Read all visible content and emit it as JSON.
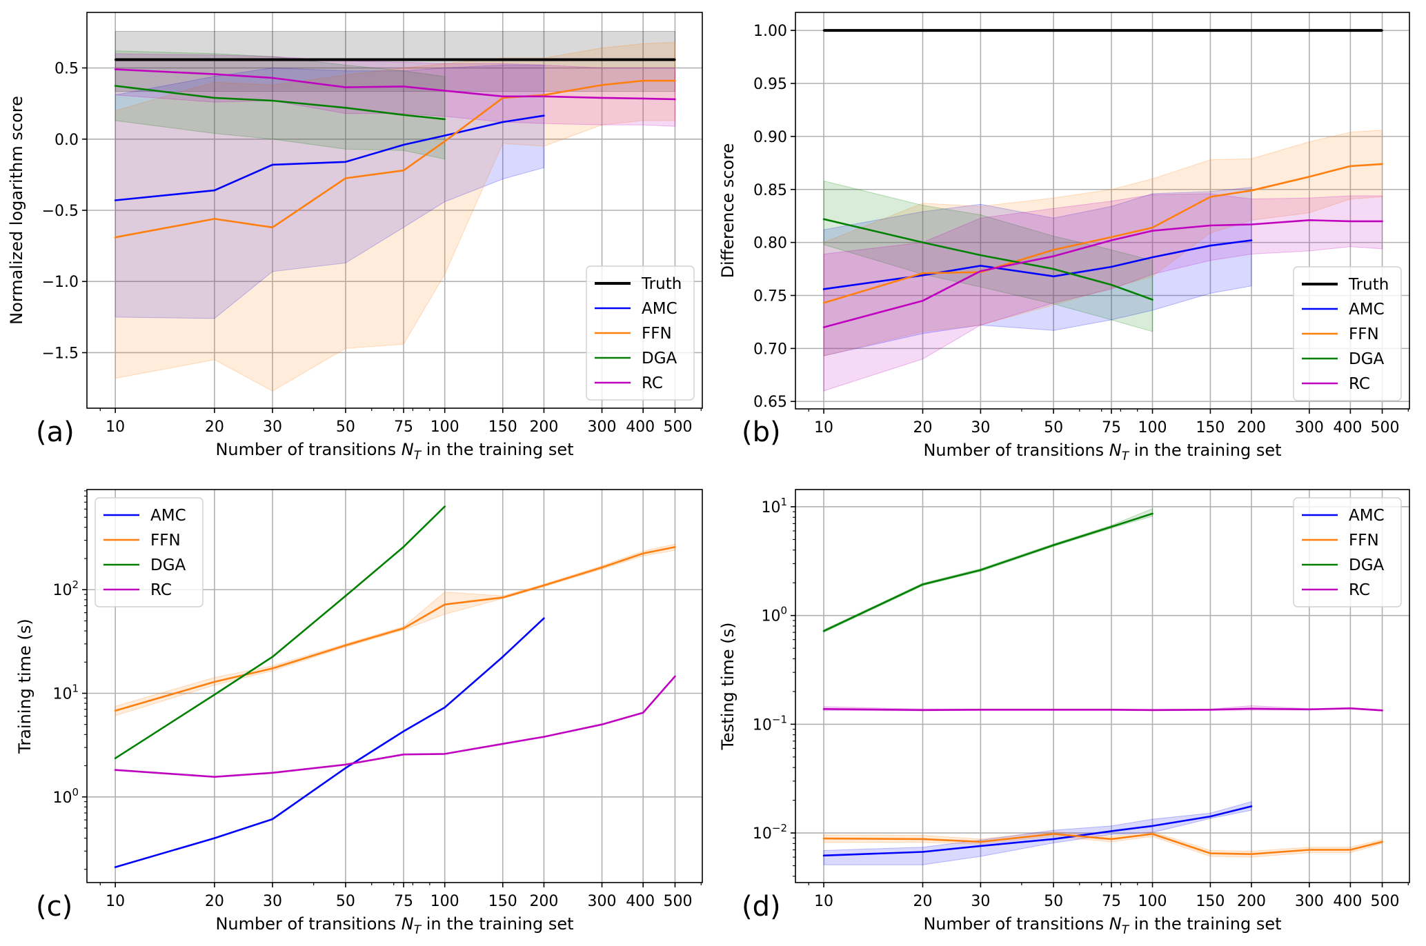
{
  "figure": {
    "x_ticks": [
      10,
      20,
      30,
      50,
      75,
      100,
      150,
      200,
      300,
      400,
      500
    ],
    "x_tick_labels": [
      "10",
      "20",
      "30",
      "50",
      "75",
      "100",
      "150",
      "200",
      "300",
      "400",
      "500"
    ],
    "xlabel_prefix": "Number of transitions ",
    "xlabel_symbol": "N",
    "xlabel_subscript": "T",
    "xlabel_suffix": " in the training set"
  },
  "colors": {
    "Truth": "#000000",
    "AMC": "#0000ff",
    "FFN": "#ff7f0e",
    "DGA": "#008000",
    "RC": "#bf00bf"
  },
  "chart_data": [
    {
      "id": "a",
      "panel_label": "(a)",
      "type": "line",
      "xscale": "log",
      "yscale": "linear",
      "xlim": [
        8.2,
        605
      ],
      "ylim": [
        -1.89,
        0.89
      ],
      "y_ticks": [
        -1.5,
        -1.0,
        -0.5,
        0.0,
        0.5
      ],
      "y_tick_labels": [
        "−1.5",
        "−1.0",
        "−0.5",
        "0.0",
        "0.5"
      ],
      "ylabel": "Normalized logarithm score",
      "grid": true,
      "legend_position": "lower-right",
      "legend": [
        "Truth",
        "AMC",
        "FFN",
        "DGA",
        "RC"
      ],
      "series": [
        {
          "name": "Truth",
          "x": [
            10,
            500
          ],
          "y": [
            0.558,
            0.558
          ],
          "lower": [
            0.335,
            0.335
          ],
          "upper": [
            0.757,
            0.757
          ]
        },
        {
          "name": "AMC",
          "x": [
            10,
            20,
            30,
            50,
            75,
            100,
            150,
            200
          ],
          "y": [
            -0.43,
            -0.36,
            -0.18,
            -0.16,
            -0.04,
            0.025,
            0.12,
            0.165
          ],
          "lower": [
            -1.25,
            -1.26,
            -0.93,
            -0.87,
            -0.62,
            -0.44,
            -0.28,
            -0.2
          ],
          "upper": [
            0.31,
            0.44,
            0.5,
            0.48,
            0.48,
            0.5,
            0.52,
            0.52
          ]
        },
        {
          "name": "FFN",
          "x": [
            10,
            20,
            30,
            50,
            75,
            100,
            150,
            200,
            300,
            400,
            500
          ],
          "y": [
            -0.69,
            -0.56,
            -0.62,
            -0.275,
            -0.22,
            -0.015,
            0.29,
            0.31,
            0.38,
            0.41,
            0.41
          ],
          "lower": [
            -1.68,
            -1.55,
            -1.77,
            -1.47,
            -1.44,
            -0.95,
            -0.03,
            -0.05,
            0.1,
            0.13,
            0.13
          ],
          "upper": [
            0.2,
            0.4,
            0.38,
            0.45,
            0.5,
            0.53,
            0.57,
            0.57,
            0.64,
            0.67,
            0.68
          ]
        },
        {
          "name": "DGA",
          "x": [
            10,
            20,
            30,
            50,
            75,
            100
          ],
          "y": [
            0.374,
            0.29,
            0.27,
            0.22,
            0.17,
            0.14
          ],
          "lower": [
            0.13,
            0.04,
            0.0,
            -0.07,
            -0.08,
            -0.14
          ],
          "upper": [
            0.62,
            0.6,
            0.58,
            0.52,
            0.48,
            0.44
          ]
        },
        {
          "name": "RC",
          "x": [
            10,
            20,
            30,
            50,
            75,
            100,
            150,
            200,
            300,
            400,
            500
          ],
          "y": [
            0.49,
            0.456,
            0.43,
            0.364,
            0.37,
            0.34,
            0.3,
            0.3,
            0.29,
            0.285,
            0.28
          ],
          "lower": [
            0.31,
            0.26,
            0.27,
            0.18,
            0.18,
            0.16,
            0.12,
            0.11,
            0.1,
            0.1,
            0.09
          ],
          "upper": [
            0.6,
            0.59,
            0.58,
            0.55,
            0.54,
            0.53,
            0.53,
            0.52,
            0.5,
            0.5,
            0.5
          ]
        }
      ]
    },
    {
      "id": "b",
      "panel_label": "(b)",
      "type": "line",
      "xscale": "log",
      "yscale": "linear",
      "xlim": [
        8.2,
        605
      ],
      "ylim": [
        0.643,
        1.017
      ],
      "y_ticks": [
        0.65,
        0.7,
        0.75,
        0.8,
        0.85,
        0.9,
        0.95,
        1.0
      ],
      "y_tick_labels": [
        "0.65",
        "0.70",
        "0.75",
        "0.80",
        "0.85",
        "0.90",
        "0.95",
        "1.00"
      ],
      "ylabel": "Difference score",
      "grid": true,
      "legend_position": "lower-right",
      "legend": [
        "Truth",
        "AMC",
        "FFN",
        "DGA",
        "RC"
      ],
      "series": [
        {
          "name": "Truth",
          "x": [
            10,
            500
          ],
          "y": [
            1.0,
            1.0
          ]
        },
        {
          "name": "AMC",
          "x": [
            10,
            20,
            30,
            50,
            75,
            100,
            150,
            200
          ],
          "y": [
            0.756,
            0.769,
            0.778,
            0.768,
            0.777,
            0.786,
            0.797,
            0.802
          ],
          "lower": [
            0.693,
            0.714,
            0.722,
            0.717,
            0.727,
            0.736,
            0.752,
            0.759
          ],
          "upper": [
            0.812,
            0.829,
            0.836,
            0.823,
            0.834,
            0.846,
            0.848,
            0.852
          ]
        },
        {
          "name": "FFN",
          "x": [
            10,
            20,
            30,
            50,
            75,
            100,
            150,
            200,
            300,
            400,
            500
          ],
          "y": [
            0.743,
            0.771,
            0.772,
            0.793,
            0.805,
            0.814,
            0.843,
            0.849,
            0.862,
            0.872,
            0.874
          ],
          "lower": [
            0.693,
            0.716,
            0.722,
            0.741,
            0.757,
            0.768,
            0.809,
            0.821,
            0.828,
            0.841,
            0.843
          ],
          "upper": [
            0.8,
            0.837,
            0.834,
            0.842,
            0.85,
            0.86,
            0.878,
            0.879,
            0.895,
            0.904,
            0.906
          ]
        },
        {
          "name": "DGA",
          "x": [
            10,
            20,
            30,
            50,
            75,
            100
          ],
          "y": [
            0.822,
            0.8,
            0.788,
            0.775,
            0.76,
            0.746
          ],
          "lower": [
            0.798,
            0.77,
            0.758,
            0.742,
            0.727,
            0.716
          ],
          "upper": [
            0.858,
            0.835,
            0.826,
            0.806,
            0.793,
            0.783
          ]
        },
        {
          "name": "RC",
          "x": [
            10,
            20,
            30,
            50,
            75,
            100,
            150,
            200,
            300,
            400,
            500
          ],
          "y": [
            0.72,
            0.745,
            0.773,
            0.787,
            0.802,
            0.811,
            0.816,
            0.817,
            0.821,
            0.82,
            0.82
          ],
          "lower": [
            0.66,
            0.69,
            0.722,
            0.743,
            0.756,
            0.77,
            0.783,
            0.789,
            0.792,
            0.796,
            0.794
          ],
          "upper": [
            0.789,
            0.8,
            0.823,
            0.832,
            0.839,
            0.845,
            0.846,
            0.841,
            0.842,
            0.844,
            0.844
          ]
        }
      ]
    },
    {
      "id": "c",
      "panel_label": "(c)",
      "type": "line",
      "xscale": "log",
      "yscale": "log",
      "xlim": [
        8.2,
        605
      ],
      "ylim": [
        0.149,
        926
      ],
      "y_ticks": [
        1,
        10,
        100
      ],
      "y_tick_labels": [
        [
          "10",
          "0"
        ],
        [
          "10",
          "1"
        ],
        [
          "10",
          "2"
        ]
      ],
      "ylabel": "Training time (s)",
      "grid": true,
      "legend_position": "upper-left",
      "legend": [
        "AMC",
        "FFN",
        "DGA",
        "RC"
      ],
      "series": [
        {
          "name": "AMC",
          "x": [
            10,
            20,
            30,
            50,
            75,
            100,
            150,
            200
          ],
          "y": [
            0.21,
            0.4,
            0.61,
            1.9,
            4.3,
            7.3,
            22.5,
            53
          ]
        },
        {
          "name": "FFN",
          "x": [
            10,
            20,
            30,
            50,
            75,
            100,
            150,
            200,
            300,
            400,
            500
          ],
          "y": [
            6.8,
            12.9,
            17.4,
            29,
            42.4,
            72,
            84,
            110,
            164,
            224,
            258
          ],
          "lower": [
            6.1,
            12.0,
            16.5,
            28,
            41,
            58,
            82,
            107,
            158,
            212,
            240
          ],
          "upper": [
            7.5,
            14.2,
            18.4,
            30,
            44,
            95,
            87,
            113,
            170,
            236,
            275
          ]
        },
        {
          "name": "DGA",
          "x": [
            10,
            20,
            30,
            50,
            75,
            100
          ],
          "y": [
            2.36,
            9.7,
            22.5,
            87,
            259,
            636
          ]
        },
        {
          "name": "RC",
          "x": [
            10,
            20,
            30,
            50,
            75,
            100,
            150,
            200,
            300,
            400,
            500
          ],
          "y": [
            1.82,
            1.56,
            1.71,
            2.05,
            2.57,
            2.6,
            3.25,
            3.8,
            5.0,
            6.5,
            14.6
          ]
        }
      ]
    },
    {
      "id": "d",
      "panel_label": "(d)",
      "type": "line",
      "xscale": "log",
      "yscale": "log",
      "xlim": [
        8.2,
        605
      ],
      "ylim": [
        0.0035,
        14.4
      ],
      "y_ticks": [
        0.01,
        0.1,
        1,
        10
      ],
      "y_tick_labels": [
        [
          "10",
          "−2"
        ],
        [
          "10",
          "−1"
        ],
        [
          "10",
          "0"
        ],
        [
          "10",
          "1"
        ]
      ],
      "ylabel": "Testing time (s)",
      "grid": true,
      "legend_position": "upper-right",
      "legend": [
        "AMC",
        "FFN",
        "DGA",
        "RC"
      ],
      "series": [
        {
          "name": "AMC",
          "x": [
            10,
            20,
            30,
            50,
            75,
            100,
            150,
            200
          ],
          "y": [
            0.0062,
            0.0067,
            0.0076,
            0.0088,
            0.0104,
            0.0116,
            0.0142,
            0.0176
          ],
          "lower": [
            0.0051,
            0.0051,
            0.0061,
            0.0081,
            0.0097,
            0.0101,
            0.0136,
            0.0162
          ],
          "upper": [
            0.0069,
            0.0074,
            0.0086,
            0.0106,
            0.0116,
            0.0134,
            0.0152,
            0.0194
          ]
        },
        {
          "name": "FFN",
          "x": [
            10,
            20,
            30,
            50,
            75,
            100,
            150,
            200,
            300,
            400,
            500
          ],
          "y": [
            0.0089,
            0.0088,
            0.0083,
            0.0098,
            0.0088,
            0.0098,
            0.0065,
            0.0064,
            0.007,
            0.007,
            0.0083
          ],
          "lower": [
            0.0082,
            0.0082,
            0.0079,
            0.0093,
            0.0083,
            0.0093,
            0.0061,
            0.006,
            0.0066,
            0.0066,
            0.008
          ],
          "upper": [
            0.0096,
            0.0095,
            0.0088,
            0.0103,
            0.0093,
            0.0103,
            0.0069,
            0.0068,
            0.0074,
            0.0074,
            0.0087
          ]
        },
        {
          "name": "DGA",
          "x": [
            10,
            20,
            30,
            50,
            75,
            100
          ],
          "y": [
            0.72,
            1.93,
            2.62,
            4.44,
            6.55,
            8.65
          ],
          "lower": [
            0.7,
            1.88,
            2.55,
            4.32,
            6.35,
            8.2
          ],
          "upper": [
            0.74,
            1.98,
            2.7,
            4.56,
            6.75,
            9.6
          ]
        },
        {
          "name": "RC",
          "x": [
            10,
            20,
            30,
            50,
            75,
            100,
            150,
            200,
            300,
            400,
            500
          ],
          "y": [
            0.138,
            0.135,
            0.136,
            0.136,
            0.136,
            0.135,
            0.136,
            0.139,
            0.137,
            0.14,
            0.134
          ],
          "lower": [
            0.134,
            0.133,
            0.134,
            0.134,
            0.134,
            0.133,
            0.134,
            0.135,
            0.135,
            0.138,
            0.132
          ],
          "upper": [
            0.145,
            0.138,
            0.138,
            0.138,
            0.138,
            0.137,
            0.138,
            0.148,
            0.139,
            0.142,
            0.136
          ]
        }
      ]
    }
  ]
}
